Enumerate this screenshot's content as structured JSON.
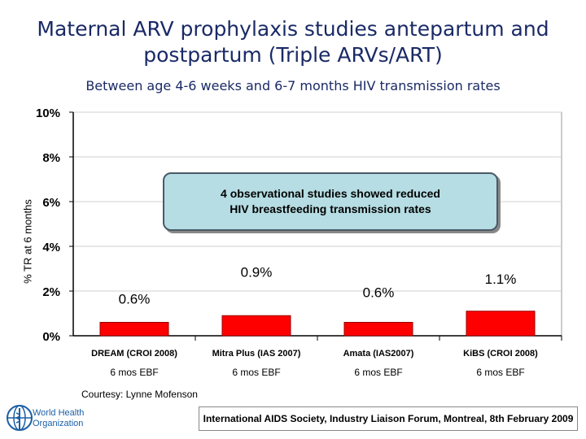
{
  "slide": {
    "title": "Maternal ARV prophylaxis studies antepartum and postpartum (Triple ARVs/ART)",
    "subtitle": "Between age 4-6 weeks and 6-7 months HIV transmission rates",
    "callout": "4 observational studies showed reduced\nHIV breastfeeding transmission rates",
    "courtesy": "Courtesy: Lynne Mofenson",
    "logo_text": "World Health\nOrganization",
    "footer": "International AIDS Society, Industry Liaison Forum, Montreal, 8th February 2009",
    "colors": {
      "bar": "#ff0000",
      "title": "#1a2a66",
      "callout_bg": "#b5dde3"
    }
  },
  "chart_data": {
    "type": "bar",
    "ylabel": "% TR at 6 months",
    "ylim": [
      0,
      10
    ],
    "y_ticks": [
      "0%",
      "2%",
      "4%",
      "6%",
      "8%",
      "10%"
    ],
    "y_tick_values": [
      0,
      2,
      4,
      6,
      8,
      10
    ],
    "categories": [
      "DREAM (CROI 2008)",
      "Mitra Plus (IAS 2007)",
      "Amata (IAS2007)",
      "KiBS (CROI 2008)"
    ],
    "sublabels": [
      "6 mos EBF",
      "6 mos EBF",
      "6 mos EBF",
      "6 mos EBF"
    ],
    "values": [
      0.6,
      0.9,
      0.6,
      1.1
    ],
    "data_labels": [
      "0.6%",
      "0.9%",
      "0.6%",
      "1.1%"
    ]
  }
}
